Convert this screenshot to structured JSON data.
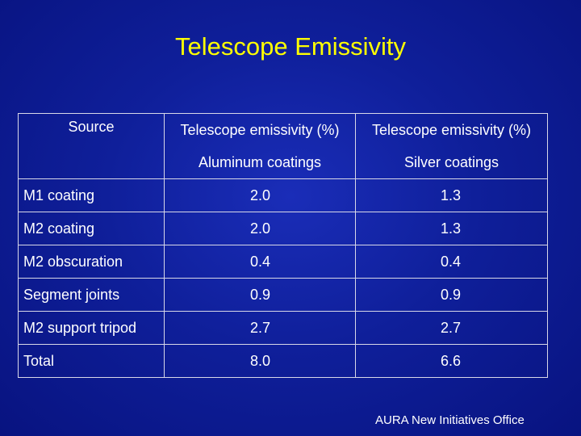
{
  "title": "Telescope Emissivity",
  "table": {
    "header_row1": {
      "source": "Source",
      "col1": "Telescope emissivity (%)",
      "col2": "Telescope emissivity (%)"
    },
    "header_row2": {
      "col1": "Aluminum coatings",
      "col2": "Silver coatings"
    },
    "rows": [
      {
        "source": "M1 coating",
        "aluminum": "2.0",
        "silver": "1.3"
      },
      {
        "source": "M2 coating",
        "aluminum": "2.0",
        "silver": "1.3"
      },
      {
        "source": "M2 obscuration",
        "aluminum": "0.4",
        "silver": "0.4"
      },
      {
        "source": "Segment joints",
        "aluminum": "0.9",
        "silver": "0.9"
      },
      {
        "source": "M2 support tripod",
        "aluminum": "2.7",
        "silver": "2.7"
      },
      {
        "source": "Total",
        "aluminum": "8.0",
        "silver": "6.6"
      }
    ]
  },
  "footer": "AURA New Initiatives Office",
  "colors": {
    "background": "#0f1f9a",
    "title": "#ffff00",
    "text": "#ffffff",
    "border": "#d8d8e8"
  }
}
